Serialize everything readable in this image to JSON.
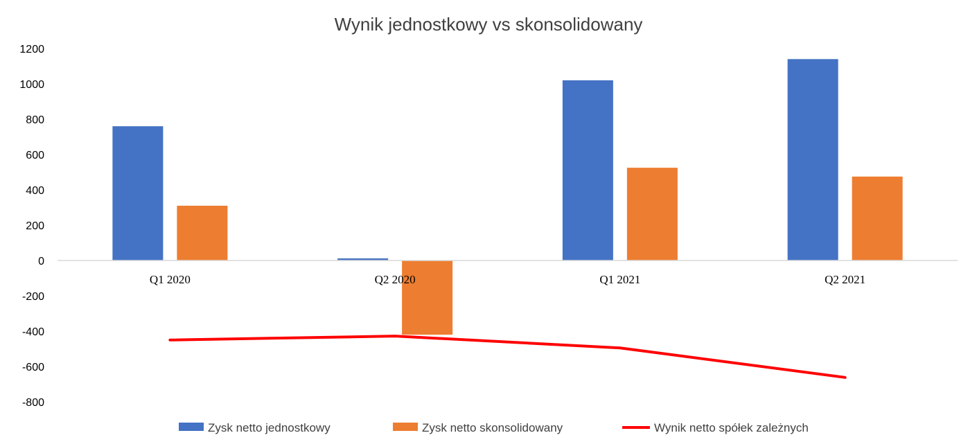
{
  "chart_data": {
    "type": "bar",
    "title": "Wynik jednostkowy vs skonsolidowany",
    "xlabel": "",
    "ylabel": "",
    "categories": [
      "Q1 2020",
      "Q2 2020",
      "Q1 2021",
      "Q2 2021"
    ],
    "ylim": [
      -800,
      1200
    ],
    "yticks": [
      "1200",
      "1000",
      "800",
      "600",
      "400",
      "200",
      "0",
      "-200",
      "-400",
      "-600",
      "-800"
    ],
    "legend_position": "bottom",
    "grid": false,
    "series": [
      {
        "name": "Zysk netto jednostkowy",
        "type": "bar",
        "color": "#4472C4",
        "values": [
          760,
          12,
          1020,
          1140
        ]
      },
      {
        "name": "Zysk netto skonsolidowany",
        "type": "bar",
        "color": "#ED7D31",
        "values": [
          310,
          -420,
          525,
          475
        ]
      },
      {
        "name": "Wynik netto spółek zależnych",
        "type": "line",
        "color": "#FF0000",
        "values": [
          -450,
          -428,
          -495,
          -662
        ]
      }
    ]
  }
}
